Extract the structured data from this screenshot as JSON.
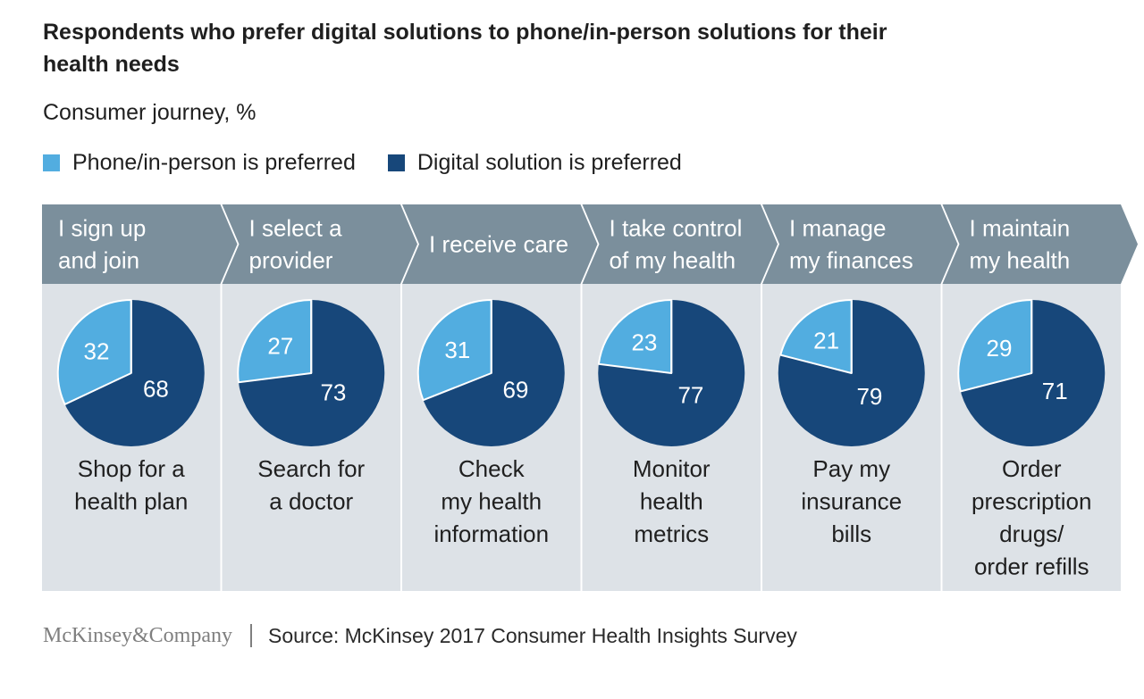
{
  "title": "Respondents who prefer digital solutions to phone/in-person solutions for their health needs",
  "subtitle": "Consumer journey, %",
  "legend": {
    "phone_label": "Phone/in-person is preferred",
    "digital_label": "Digital solution is preferred"
  },
  "colors": {
    "phone": "#52ade0",
    "digital": "#17477a",
    "header": "#7b8f9c",
    "panel": "#dde2e7"
  },
  "footer": {
    "brand": "McKinsey&Company",
    "source": "Source: McKinsey 2017 Consumer Health Insights Survey"
  },
  "chart_data": {
    "type": "pie",
    "title": "Respondents who prefer digital solutions to phone/in-person solutions for their health needs",
    "subtitle": "Consumer journey, %",
    "series_names": [
      "Phone/in-person is preferred",
      "Digital solution is preferred"
    ],
    "stages": [
      {
        "stage": [
          "I sign up",
          "and join"
        ],
        "activity": [
          "Shop for a",
          "health plan"
        ],
        "phone": 32,
        "digital": 68
      },
      {
        "stage": [
          "I select a",
          "provider"
        ],
        "activity": [
          "Search for",
          "a doctor"
        ],
        "phone": 27,
        "digital": 73
      },
      {
        "stage": [
          "I receive care"
        ],
        "activity": [
          "Check",
          "my health",
          "information"
        ],
        "phone": 31,
        "digital": 69
      },
      {
        "stage": [
          "I take control",
          "of my health"
        ],
        "activity": [
          "Monitor",
          "health",
          "metrics"
        ],
        "phone": 23,
        "digital": 77
      },
      {
        "stage": [
          "I manage",
          "my finances"
        ],
        "activity": [
          "Pay my",
          "insurance",
          "bills"
        ],
        "phone": 21,
        "digital": 79
      },
      {
        "stage": [
          "I maintain",
          "my health"
        ],
        "activity": [
          "Order",
          "prescription",
          "drugs/",
          "order refills"
        ],
        "phone": 29,
        "digital": 71
      }
    ]
  }
}
